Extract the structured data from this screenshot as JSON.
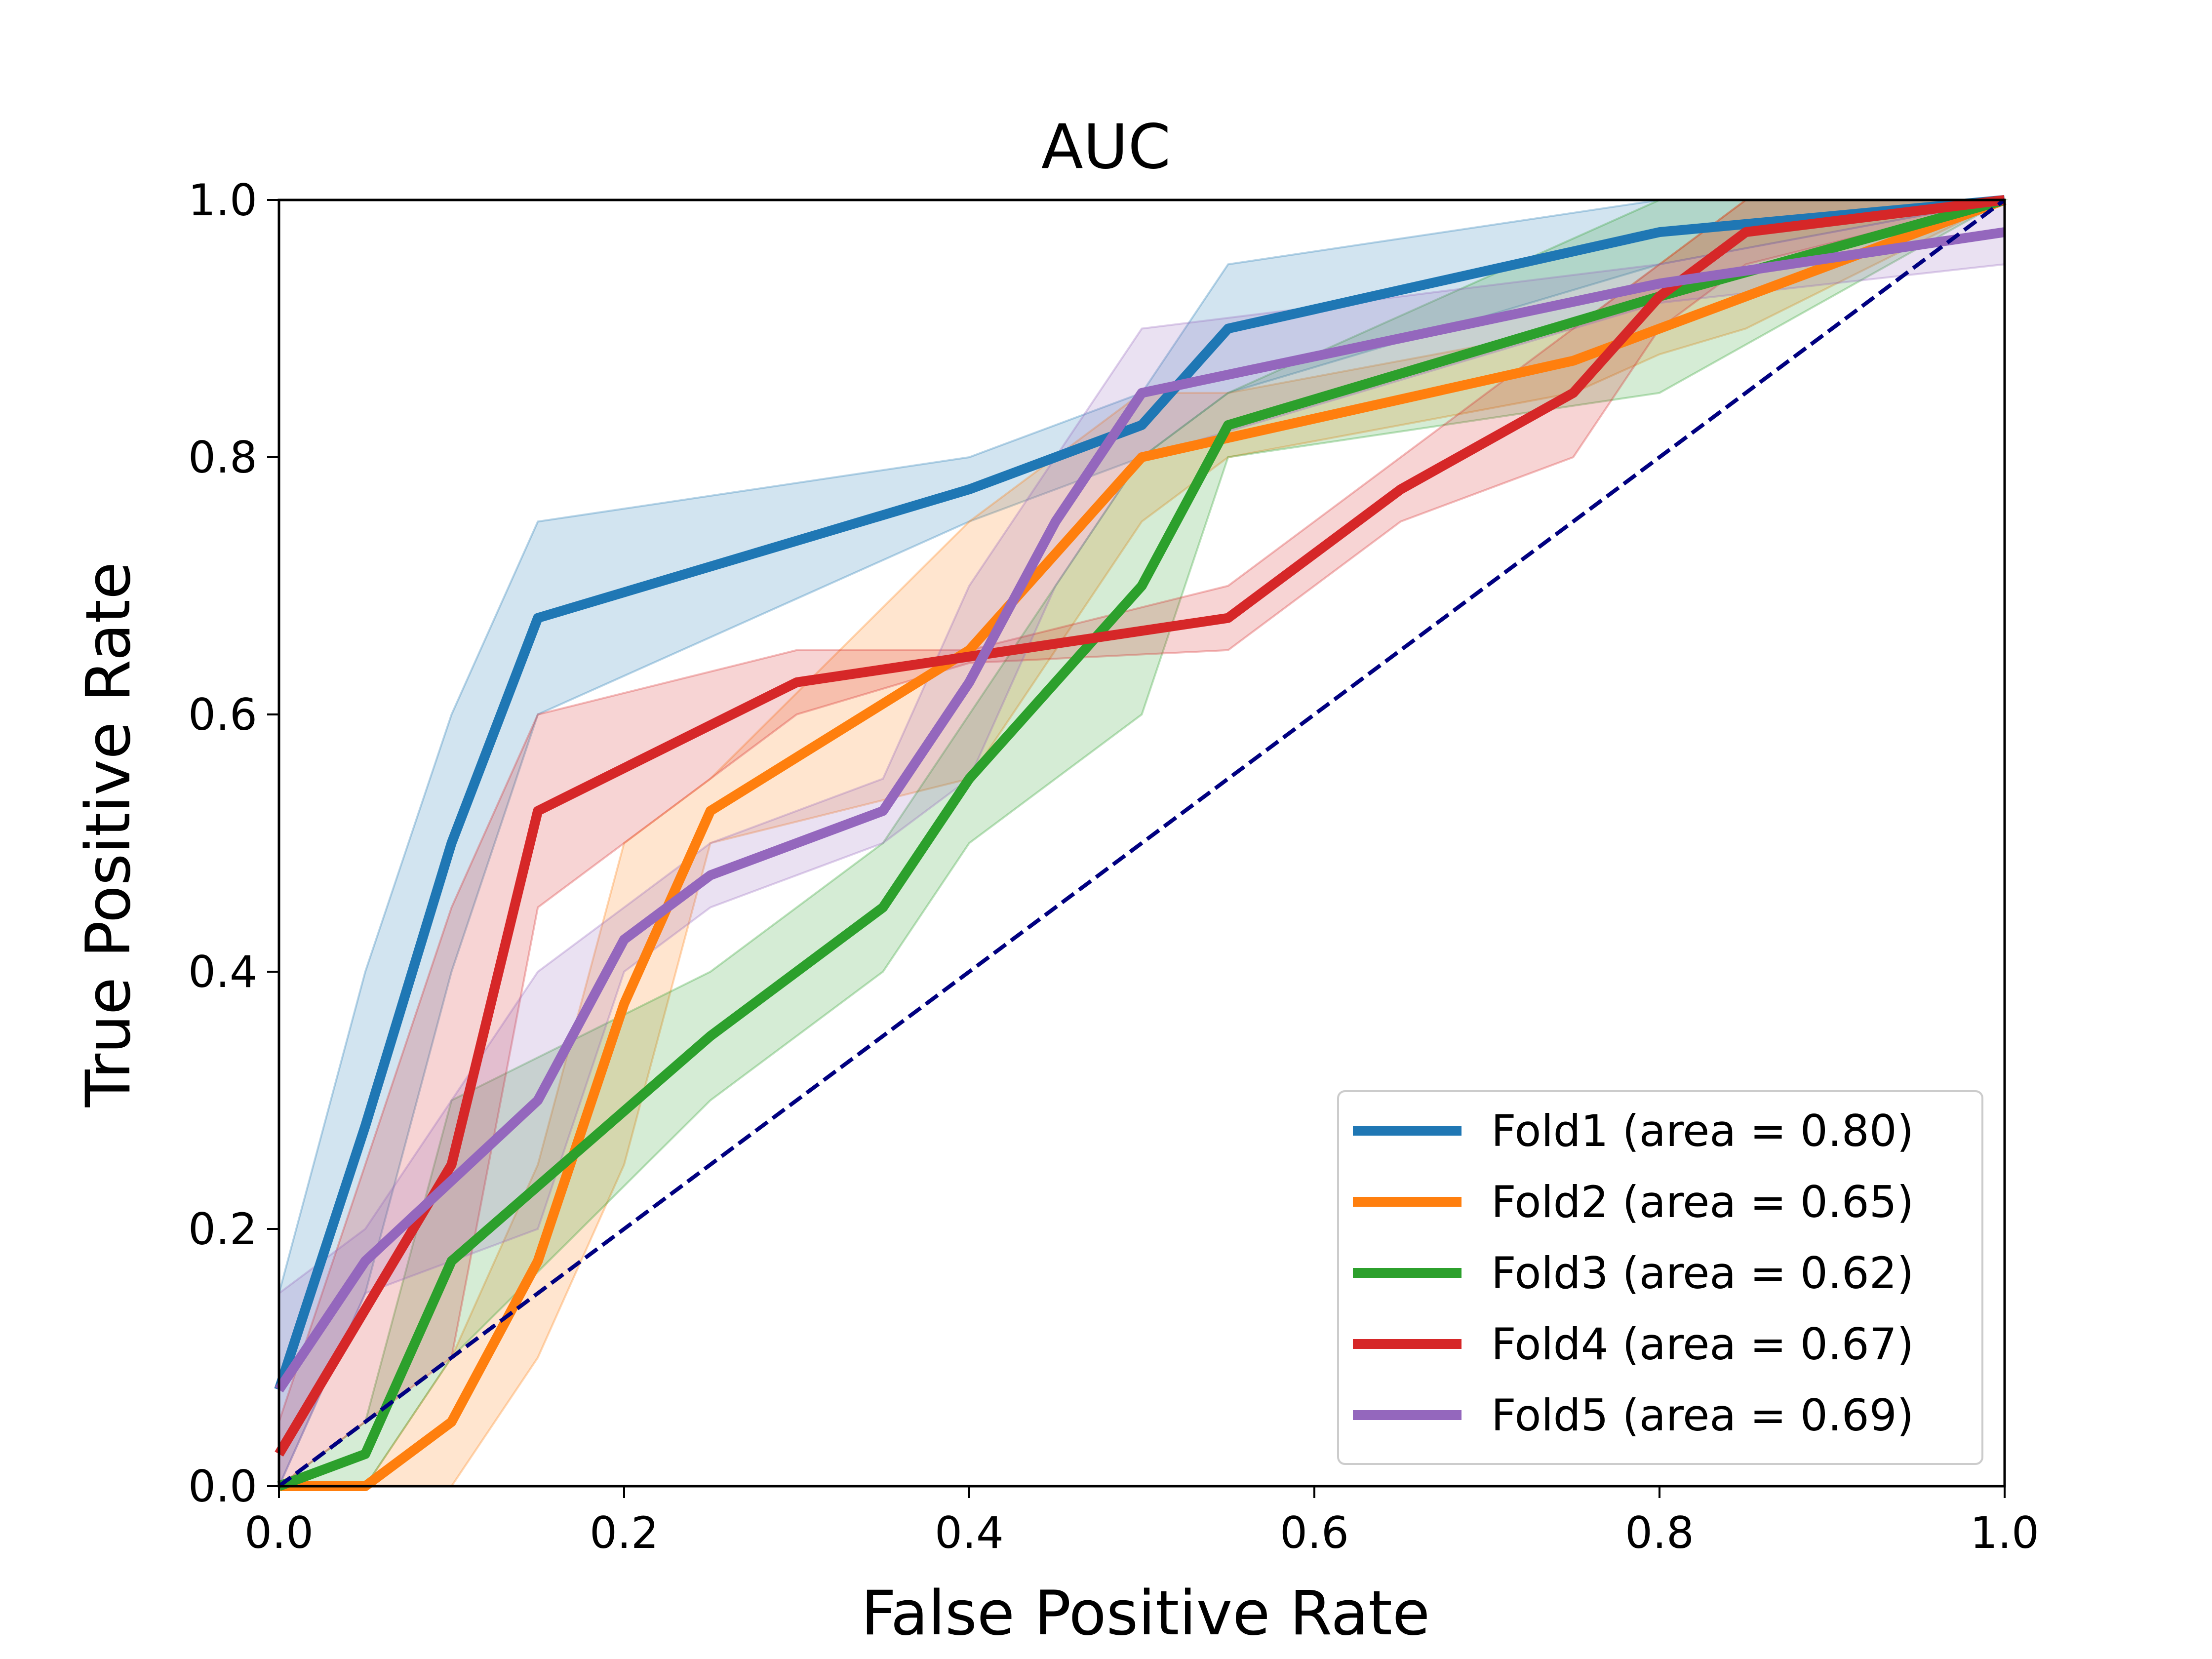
{
  "chart_data": {
    "type": "line",
    "title": "AUC",
    "xlabel": "False Positive Rate",
    "ylabel": "True Positive Rate",
    "xlim": [
      0.0,
      1.0
    ],
    "ylim": [
      0.0,
      1.0
    ],
    "xticks": [
      "0.0",
      "0.2",
      "0.4",
      "0.6",
      "0.8",
      "1.0"
    ],
    "yticks": [
      "0.0",
      "0.2",
      "0.4",
      "0.6",
      "0.8",
      "1.0"
    ],
    "grid": false,
    "legend_position": "lower-right",
    "series": [
      {
        "name": "Fold1 (area = 0.80)",
        "color": "#1f77b4",
        "x": [
          0.0,
          0.05,
          0.1,
          0.15,
          0.4,
          0.5,
          0.55,
          0.8,
          1.0
        ],
        "y": [
          0.075,
          0.28,
          0.5,
          0.675,
          0.775,
          0.825,
          0.9,
          0.975,
          1.0
        ],
        "band_upper": [
          0.15,
          0.4,
          0.6,
          0.75,
          0.8,
          0.85,
          0.95,
          1.0,
          1.0
        ],
        "band_lower": [
          0.0,
          0.15,
          0.4,
          0.6,
          0.75,
          0.8,
          0.85,
          0.95,
          1.0
        ]
      },
      {
        "name": "Fold2 (area = 0.65)",
        "color": "#ff7f0e",
        "x": [
          0.0,
          0.05,
          0.1,
          0.15,
          0.2,
          0.25,
          0.4,
          0.5,
          0.55,
          0.75,
          0.8,
          0.85,
          1.0
        ],
        "y": [
          0.0,
          0.0,
          0.05,
          0.175,
          0.375,
          0.525,
          0.65,
          0.8,
          0.815,
          0.875,
          0.9,
          0.925,
          1.0
        ],
        "band_upper": [
          0.0,
          0.0,
          0.1,
          0.25,
          0.5,
          0.55,
          0.75,
          0.85,
          0.85,
          0.9,
          0.95,
          1.0,
          1.0
        ],
        "band_lower": [
          0.0,
          0.0,
          0.0,
          0.1,
          0.25,
          0.5,
          0.55,
          0.75,
          0.8,
          0.85,
          0.88,
          0.9,
          1.0
        ]
      },
      {
        "name": "Fold3 (area = 0.62)",
        "color": "#2ca02c",
        "x": [
          0.0,
          0.05,
          0.1,
          0.25,
          0.35,
          0.4,
          0.5,
          0.55,
          0.8,
          1.0
        ],
        "y": [
          0.0,
          0.025,
          0.175,
          0.35,
          0.45,
          0.55,
          0.7,
          0.825,
          0.925,
          1.0
        ],
        "band_upper": [
          0.0,
          0.05,
          0.3,
          0.4,
          0.5,
          0.6,
          0.8,
          0.85,
          1.0,
          1.0
        ],
        "band_lower": [
          0.0,
          0.0,
          0.1,
          0.3,
          0.4,
          0.5,
          0.6,
          0.8,
          0.85,
          1.0
        ]
      },
      {
        "name": "Fold4 (area = 0.67)",
        "color": "#d62728",
        "x": [
          0.0,
          0.1,
          0.15,
          0.3,
          0.4,
          0.55,
          0.65,
          0.75,
          0.8,
          0.85,
          1.0
        ],
        "y": [
          0.025,
          0.25,
          0.525,
          0.625,
          0.645,
          0.675,
          0.775,
          0.85,
          0.925,
          0.975,
          1.0
        ],
        "band_upper": [
          0.05,
          0.45,
          0.6,
          0.65,
          0.65,
          0.7,
          0.8,
          0.9,
          0.95,
          1.0,
          1.0
        ],
        "band_lower": [
          0.0,
          0.1,
          0.45,
          0.6,
          0.64,
          0.65,
          0.75,
          0.8,
          0.9,
          0.95,
          1.0
        ]
      },
      {
        "name": "Fold5 (area = 0.69)",
        "color": "#9467bd",
        "x": [
          0.0,
          0.05,
          0.15,
          0.2,
          0.25,
          0.35,
          0.4,
          0.45,
          0.5,
          0.8,
          1.0
        ],
        "y": [
          0.075,
          0.175,
          0.3,
          0.425,
          0.475,
          0.525,
          0.625,
          0.75,
          0.85,
          0.935,
          0.975
        ],
        "band_upper": [
          0.15,
          0.2,
          0.4,
          0.45,
          0.5,
          0.55,
          0.7,
          0.8,
          0.9,
          0.95,
          1.0
        ],
        "band_lower": [
          0.0,
          0.15,
          0.2,
          0.4,
          0.45,
          0.5,
          0.55,
          0.7,
          0.8,
          0.92,
          0.95
        ]
      }
    ],
    "reference_line": {
      "x": [
        0.0,
        1.0
      ],
      "y": [
        0.0,
        1.0
      ],
      "color": "#000080",
      "style": "dashed"
    }
  }
}
